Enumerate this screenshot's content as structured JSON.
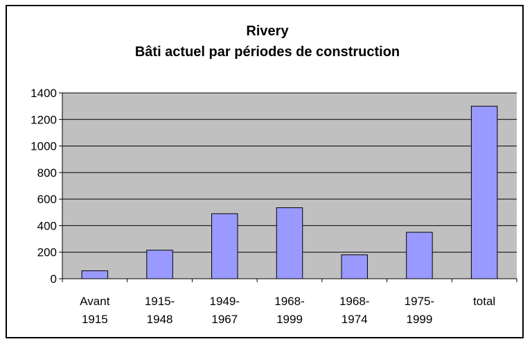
{
  "chart_data": {
    "type": "bar",
    "title": "Rivery",
    "subtitle": "Bâti actuel par périodes de construction",
    "categories": [
      [
        "Avant",
        "1915"
      ],
      [
        "1915-",
        "1948"
      ],
      [
        "1949-",
        "1967"
      ],
      [
        "1968-",
        "1999"
      ],
      [
        "1968-",
        "1974"
      ],
      [
        "1975-",
        "1999"
      ],
      [
        "total"
      ]
    ],
    "values": [
      60,
      215,
      490,
      535,
      180,
      350,
      1300
    ],
    "ylim": [
      0,
      1400
    ],
    "yticks": [
      0,
      200,
      400,
      600,
      800,
      1000,
      1200,
      1400
    ],
    "grid": true,
    "legend": "none",
    "colors": {
      "bar": "#9999ff",
      "bar_stroke": "#000000",
      "plot_background": "#c0c0c0",
      "gridline": "#000000"
    }
  }
}
